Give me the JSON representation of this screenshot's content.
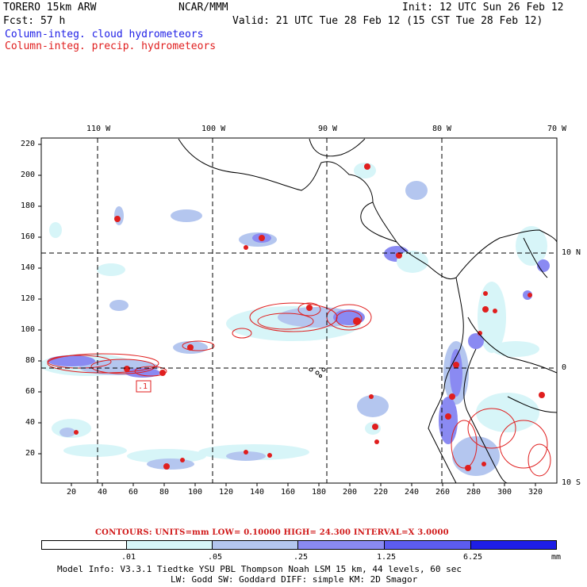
{
  "header": {
    "model": "TORERO  15km ARW",
    "org": "NCAR/MMM",
    "init": "Init: 12 UTC Sun 26 Feb 12",
    "fcst": "Fcst:   57 h",
    "valid": "Valid: 21 UTC Tue 28 Feb 12 (15 CST Tue 28 Feb 12)",
    "field_cloud": "Column-integ. cloud hydrometeors",
    "field_precip": "Column-integ. precip. hydrometeors"
  },
  "map": {
    "lon_labels": [
      "110 W",
      "100 W",
      "90 W",
      "80 W",
      "70 W"
    ],
    "lat_labels": [
      "10 N",
      "0",
      "10 S"
    ],
    "y_ticks": [
      "220",
      "200",
      "180",
      "160",
      "140",
      "120",
      "100",
      "80",
      "60",
      "40",
      "20"
    ],
    "x_ticks": [
      "20",
      "40",
      "60",
      "80",
      "100",
      "120",
      "140",
      "160",
      "180",
      "200",
      "220",
      "240",
      "260",
      "280",
      "300",
      "320"
    ],
    "marker_label": ".1"
  },
  "contours": {
    "text": "CONTOURS:  UNITS=mm  LOW= 0.10000      HIGH=  24.300      INTERVAL=X  3.0000"
  },
  "legend": {
    "labels": [
      ".01",
      ".05",
      ".25",
      "1.25",
      "6.25"
    ],
    "unit": "mm",
    "colors": [
      "#ffffff",
      "#d7f5f8",
      "#b4c6ef",
      "#8a8af2",
      "#5c5cf0",
      "#1e1ee6"
    ]
  },
  "footer": {
    "line1": "Model Info: V3.3.1   Tiedtke YSU PBL  Thompson    Noah LSM  15 km,   44 levels,   60 sec",
    "line2": "LW: Godd SW: Goddard DIFF: simple KM: 2D Smagor"
  }
}
